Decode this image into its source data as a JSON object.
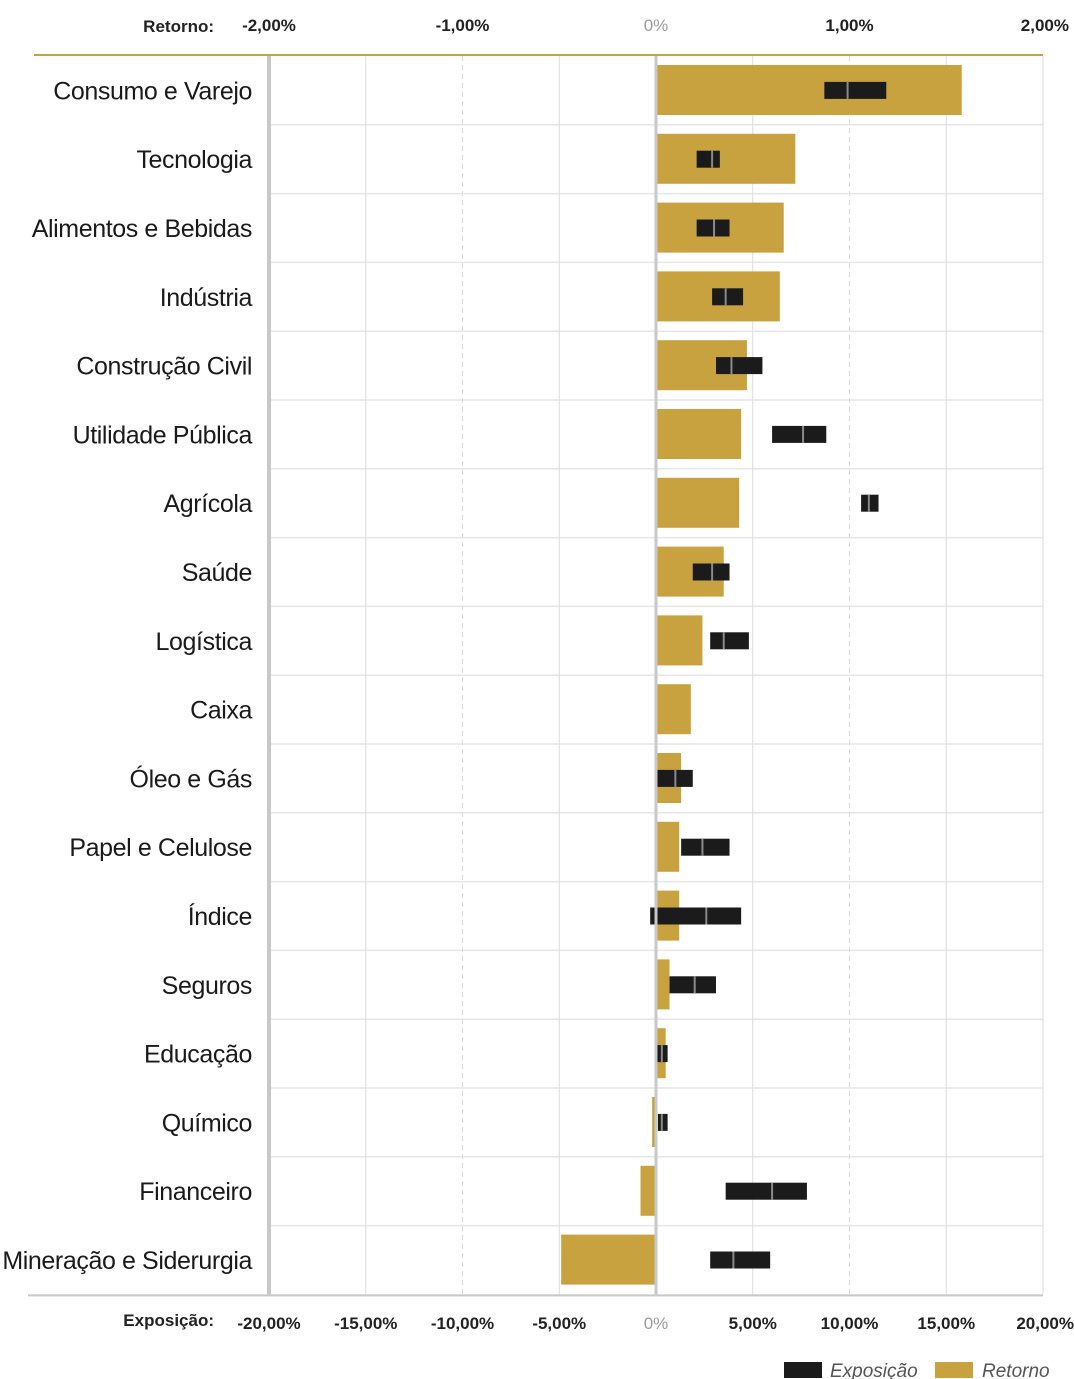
{
  "chart_data": {
    "type": "bar",
    "categories": [
      "Consumo e Varejo",
      "Tecnologia",
      "Alimentos e Bebidas",
      "Indústria",
      "Construção Civil",
      "Utilidade Pública",
      "Agrícola",
      "Saúde",
      "Logística",
      "Caixa",
      "Óleo e Gás",
      "Papel e Celulose",
      "Índice",
      "Seguros",
      "Educação",
      "Químico",
      "Financeiro",
      "Mineração e Siderurgia"
    ],
    "series": [
      {
        "name": "Retorno",
        "axis": "top",
        "unit": "%",
        "color": "#c9a240",
        "values": [
          1.58,
          0.72,
          0.66,
          0.64,
          0.47,
          0.44,
          0.43,
          0.35,
          0.24,
          0.18,
          0.13,
          0.12,
          0.12,
          0.07,
          0.05,
          -0.02,
          -0.08,
          -0.49
        ]
      },
      {
        "name": "Exposição",
        "axis": "bottom",
        "unit": "%",
        "color": "#1b1b1b",
        "ranges": [
          [
            8.7,
            11.9
          ],
          [
            2.1,
            3.3
          ],
          [
            2.1,
            3.8
          ],
          [
            2.9,
            4.5
          ],
          [
            3.1,
            5.5
          ],
          [
            6.0,
            8.8
          ],
          [
            10.6,
            11.5
          ],
          [
            1.9,
            3.8
          ],
          [
            2.8,
            4.8
          ],
          null,
          [
            0.0,
            1.9
          ],
          [
            1.3,
            3.8
          ],
          [
            -0.3,
            4.4
          ],
          [
            0.7,
            3.1
          ],
          [
            0.0,
            0.6
          ],
          [
            0.1,
            0.6
          ],
          [
            3.6,
            7.8
          ],
          [
            2.8,
            5.9
          ]
        ],
        "markers": [
          9.9,
          2.9,
          3.0,
          3.6,
          3.9,
          7.6,
          11.0,
          2.9,
          3.5,
          null,
          1.0,
          2.4,
          2.6,
          2.0,
          0.3,
          0.3,
          6.0,
          4.0
        ]
      }
    ],
    "top_axis": {
      "title": "Retorno:",
      "range": [
        -2,
        2
      ],
      "ticks": [
        -2,
        -1,
        0,
        1,
        2
      ],
      "tick_labels": [
        "-2,00%",
        "-1,00%",
        "0%",
        "1,00%",
        "2,00%"
      ]
    },
    "bottom_axis": {
      "title": "Exposição:",
      "range": [
        -20,
        20
      ],
      "ticks": [
        -20,
        -15,
        -10,
        -5,
        0,
        5,
        10,
        15,
        20
      ],
      "tick_labels": [
        "-20,00%",
        "-15,00%",
        "-10,00%",
        "-5,00%",
        "0%",
        "5,00%",
        "10,00%",
        "15,00%",
        "20,00%"
      ]
    },
    "legend": {
      "position": "bottom-right",
      "items": [
        "Exposição",
        "Retorno"
      ]
    },
    "grid": true
  }
}
